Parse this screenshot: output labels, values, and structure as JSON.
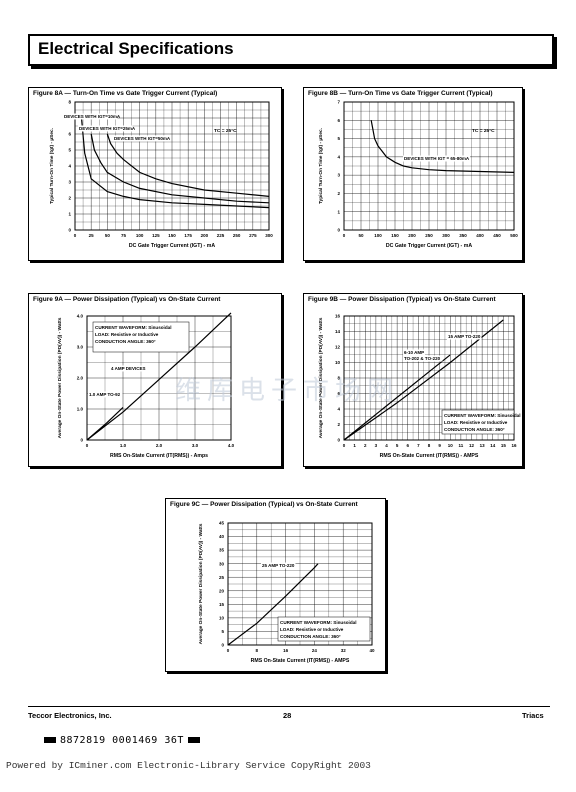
{
  "header": {
    "title": "Electrical Specifications"
  },
  "figures": {
    "f8a": {
      "title": "Figure 8A — Turn-On Time vs Gate Trigger Current (Typical)",
      "ylabel": "Typical Turn-On Time (tgt) - µSec.",
      "xlabel": "DC Gate Trigger Current (IGT) - mA",
      "note": "TC = 25°C",
      "labels": [
        "DEVICES WITH IGT=10mA",
        "DEVICES WITH IGT=25mA",
        "DEVICES WITH IGT=50mA"
      ]
    },
    "f8b": {
      "title": "Figure 8B — Turn-On Time vs Gate Trigger Current (Typical)",
      "ylabel": "Typical Turn-On Time (tgt) - µSec.",
      "xlabel": "DC Gate Trigger Current (IGT) - mA",
      "note": "TC = 25°C",
      "labels": [
        "DEVICES WITH IGT = 65-80mA"
      ]
    },
    "f9a": {
      "title": "Figure 9A — Power Dissipation (Typical) vs On-State Current",
      "ylabel": "Average On-State Power Dissipation (PD(AV)) - Watts",
      "xlabel": "RMS On-State Current (IT(RMS)) - Amps",
      "box": [
        "CURRENT WAVEFORM: Sinusoidal",
        "LOAD: Resistive or Inductive",
        "CONDUCTION ANGLE: 360°"
      ],
      "labels": [
        "4 AMP DEVICES",
        "1.0 AMP TO-92"
      ]
    },
    "f9b": {
      "title": "Figure 9B — Power Dissipation (Typical) vs On-State Current",
      "ylabel": "Average On-State Power Dissipation (PD(AV)) - Watts",
      "xlabel": "RMS On-State Current (IT(RMS)) - AMPS",
      "box": [
        "CURRENT WAVEFORM: Sinusoidal",
        "LOAD: Resistive or Inductive",
        "CONDUCTION ANGLE: 360°"
      ],
      "labels": [
        "15 AMP TO-220",
        "6-10 AMP",
        "TO-202 & TO-220"
      ]
    },
    "f9c": {
      "title": "Figure 9C — Power Dissipation (Typical) vs On-State Current",
      "ylabel": "Average On-State Power Dissipation (PD(AV)) - Watts",
      "xlabel": "RMS On-State Current (IT(RMS)) - AMPS",
      "box": [
        "CURRENT WAVEFORM: Sinusoidal",
        "LOAD: Resistive or Inductive",
        "CONDUCTION ANGLE: 360°"
      ],
      "labels": [
        "25 AMP TO-220"
      ]
    }
  },
  "chart_data": [
    {
      "type": "line",
      "title": "Figure 8A — Turn-On Time vs Gate Trigger Current (Typical)",
      "xlim": [
        0,
        300
      ],
      "ylim": [
        0,
        8
      ],
      "xticks": [
        0,
        25,
        50,
        75,
        100,
        125,
        150,
        175,
        200,
        225,
        250,
        275,
        300
      ],
      "yticks": [
        0,
        1,
        2,
        3,
        4,
        5,
        6,
        7,
        8
      ],
      "series": [
        {
          "name": "DEVICES WITH IGT=10mA",
          "x": [
            10,
            15,
            25,
            50,
            75,
            100,
            150,
            200,
            250,
            300
          ],
          "y": [
            7.0,
            4.8,
            3.2,
            2.4,
            2.1,
            1.9,
            1.7,
            1.6,
            1.5,
            1.4
          ]
        },
        {
          "name": "DEVICES WITH IGT=25mA",
          "x": [
            25,
            30,
            40,
            50,
            75,
            100,
            150,
            200,
            250,
            300
          ],
          "y": [
            6.0,
            5.0,
            4.2,
            3.6,
            3.0,
            2.6,
            2.2,
            2.0,
            1.8,
            1.7
          ]
        },
        {
          "name": "DEVICES WITH IGT=50mA",
          "x": [
            50,
            55,
            65,
            75,
            100,
            125,
            150,
            200,
            250,
            300
          ],
          "y": [
            6.0,
            5.4,
            4.8,
            4.4,
            3.6,
            3.2,
            2.9,
            2.5,
            2.3,
            2.1
          ]
        }
      ]
    },
    {
      "type": "line",
      "title": "Figure 8B — Turn-On Time vs Gate Trigger Current (Typical)",
      "xlim": [
        0,
        500
      ],
      "ylim": [
        0,
        7
      ],
      "xticks": [
        0,
        50,
        100,
        150,
        200,
        250,
        300,
        350,
        400,
        450,
        500
      ],
      "yticks": [
        0,
        1,
        2,
        3,
        4,
        5,
        6,
        7
      ],
      "series": [
        {
          "name": "DEVICES WITH IGT = 65-80mA",
          "x": [
            80,
            90,
            100,
            125,
            150,
            175,
            200,
            250,
            300,
            400,
            500
          ],
          "y": [
            6.0,
            5.0,
            4.6,
            4.0,
            3.7,
            3.5,
            3.4,
            3.3,
            3.25,
            3.2,
            3.15
          ]
        }
      ]
    },
    {
      "type": "line",
      "title": "Figure 9A — Power Dissipation (Typical) vs On-State Current",
      "xlim": [
        0,
        4
      ],
      "ylim": [
        0,
        4
      ],
      "xticks": [
        0,
        1.0,
        2.0,
        3.0,
        4.0
      ],
      "yticks": [
        0,
        1.0,
        2.0,
        3.0,
        4.0
      ],
      "xticklabels": [
        "0",
        "1.0",
        "2.0",
        "3.0",
        "4.0"
      ],
      "yticklabels": [
        "0",
        "1.0",
        "2.0",
        "3.0",
        "4.0"
      ],
      "series": [
        {
          "name": "4 AMP DEVICES",
          "x": [
            0,
            1,
            2,
            3,
            4
          ],
          "y": [
            0,
            0.9,
            1.95,
            3.0,
            4.1
          ]
        },
        {
          "name": "1.0 AMP TO-92",
          "x": [
            0,
            0.5,
            1.0
          ],
          "y": [
            0,
            0.5,
            1.05
          ]
        }
      ]
    },
    {
      "type": "line",
      "title": "Figure 9B — Power Dissipation (Typical) vs On-State Current",
      "xlim": [
        0,
        16
      ],
      "ylim": [
        0,
        16
      ],
      "xticks": [
        0,
        1,
        2,
        3,
        4,
        5,
        6,
        7,
        8,
        9,
        10,
        11,
        12,
        13,
        14,
        15,
        16
      ],
      "yticks": [
        0,
        2,
        4,
        6,
        8,
        10,
        12,
        14,
        16
      ],
      "series": [
        {
          "name": "15 AMP TO-220",
          "x": [
            0,
            5,
            10,
            15
          ],
          "y": [
            0,
            4.8,
            10.0,
            15.5
          ]
        },
        {
          "name": "6-10 AMP TO-202 & TO-220",
          "x": [
            0,
            4,
            8,
            10
          ],
          "y": [
            0,
            4.4,
            8.8,
            11.0
          ]
        }
      ]
    },
    {
      "type": "line",
      "title": "Figure 9C — Power Dissipation (Typical) vs On-State Current",
      "xlim": [
        0,
        40
      ],
      "ylim": [
        0,
        45
      ],
      "xticks": [
        0,
        8,
        16,
        24,
        32,
        40
      ],
      "yticks": [
        0,
        5,
        10,
        15,
        20,
        25,
        30,
        35,
        40,
        45
      ],
      "series": [
        {
          "name": "25 AMP TO-220",
          "x": [
            0,
            8,
            16,
            24,
            25
          ],
          "y": [
            0,
            8,
            18,
            28.5,
            30
          ]
        }
      ]
    }
  ],
  "footer": {
    "left": "Teccor Electronics, Inc.",
    "center": "28",
    "right": "Triacs"
  },
  "barcode": {
    "text": "8872819 0001469 36T"
  },
  "powered": "Powered by ICminer.com Electronic-Library Service CopyRight 2003",
  "watermark": "维库电子市场网"
}
